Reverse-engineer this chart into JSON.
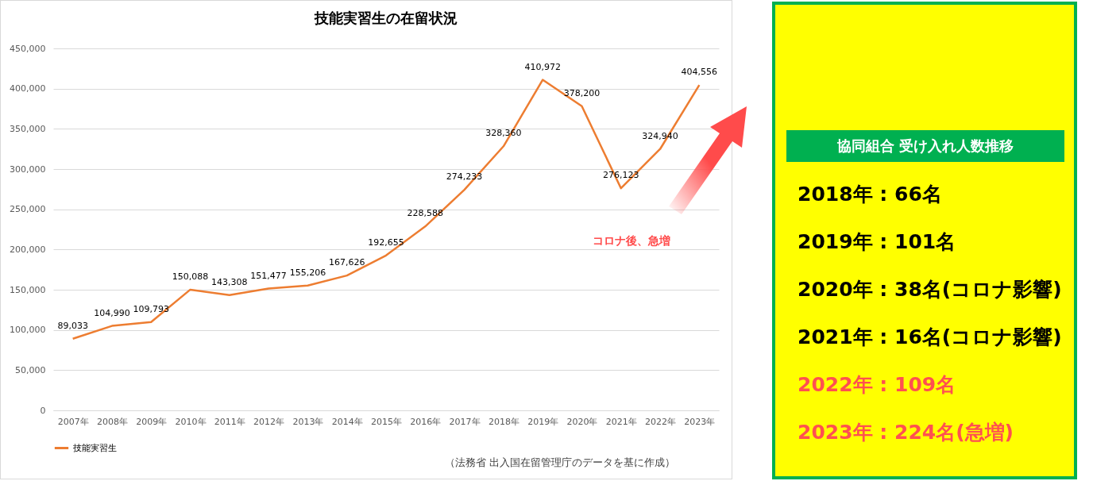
{
  "chart_data": [
    {
      "type": "line",
      "title": "技能実習生の在留状況",
      "categories": [
        "2007年",
        "2008年",
        "2009年",
        "2010年",
        "2011年",
        "2012年",
        "2013年",
        "2014年",
        "2015年",
        "2016年",
        "2017年",
        "2018年",
        "2019年",
        "2020年",
        "2021年",
        "2022年",
        "2023年"
      ],
      "series": [
        {
          "name": "技能実習生",
          "color": "#ed7d31",
          "values": [
            89033,
            104990,
            109793,
            150088,
            143308,
            151477,
            155206,
            167626,
            192655,
            228588,
            274233,
            328360,
            410972,
            378200,
            276123,
            324940,
            404556
          ],
          "value_labels": [
            "89,033",
            "104,990",
            "109,793",
            "150,088",
            "143,308",
            "151,477",
            "155,206",
            "167,626",
            "192,655",
            "228,588",
            "274,233",
            "328,360",
            "410,972",
            "378,200",
            "276,123",
            "324,940",
            "404,556"
          ]
        }
      ],
      "ylim": [
        0,
        450000
      ],
      "yticks": [
        0,
        {
          "value": 50000,
          "label": "50,000"
        },
        {
          "value": 100000,
          "label": "100,000"
        },
        {
          "value": 150000,
          "label": "150,000"
        },
        {
          "value": 200000,
          "label": "200,000"
        },
        {
          "value": 250000,
          "label": "250,000"
        },
        {
          "value": 300000,
          "label": "300,000"
        },
        {
          "value": 350000,
          "label": "350,000"
        },
        {
          "value": 400000,
          "label": "400,000"
        },
        {
          "value": 450000,
          "label": "450,000"
        }
      ],
      "grid": "y",
      "legend": "bottom",
      "marker": "none",
      "annotations": [
        "コロナ後、急増",
        "（法務省 出入国在留管理庁のデータを基に作成）"
      ]
    },
    {
      "type": "other",
      "title": "協同組合 受け入れ人数推移",
      "annotations": [
        "2018年 : 66名",
        "2019年 : 101名",
        "2020年 : 38名(コロナ影響)",
        "2021年 : 16名(コロナ影響)",
        "2022年 : 109名",
        "2023年 : 224名(急増)"
      ]
    }
  ]
}
